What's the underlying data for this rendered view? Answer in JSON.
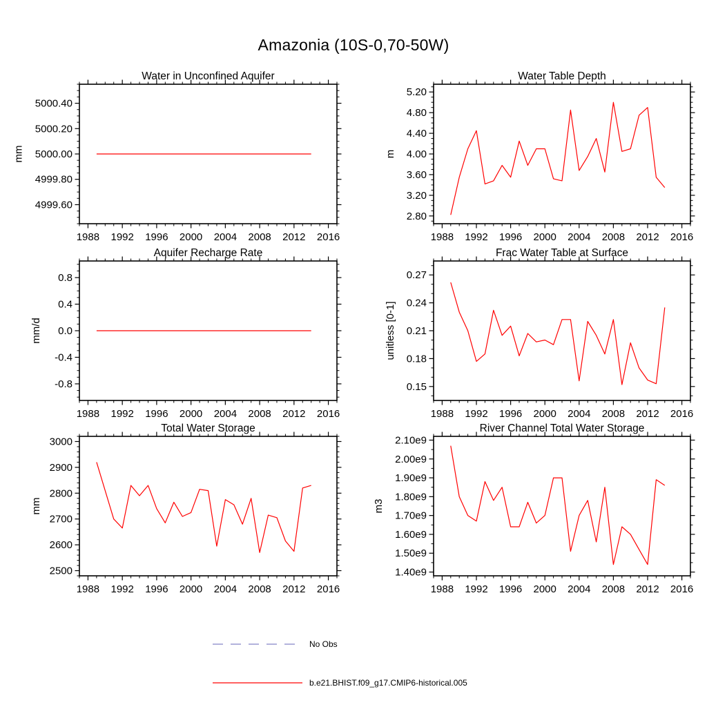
{
  "page_title": "Amazonia (10S-0,70-50W)",
  "colors": {
    "line": "#ff0000",
    "frame": "#000000",
    "no_obs": "#8585c8"
  },
  "legend": {
    "entries": [
      {
        "label": "No Obs",
        "color": "#8585c8",
        "dash": "15 11"
      },
      {
        "label": "b.e21.BHIST.f09_g17.CMIP6-historical.005",
        "color": "#ff0000",
        "dash": ""
      }
    ]
  },
  "chart_data": [
    {
      "id": "water-in-unconfined-aquifer",
      "type": "line",
      "title": "Water in Unconfined Aquifer",
      "ylabel": "mm",
      "x": [
        1989,
        1990,
        1991,
        1992,
        1993,
        1994,
        1995,
        1996,
        1997,
        1998,
        1999,
        2000,
        2001,
        2002,
        2003,
        2004,
        2005,
        2006,
        2007,
        2008,
        2009,
        2010,
        2011,
        2012,
        2013,
        2014
      ],
      "values": [
        5000,
        5000,
        5000,
        5000,
        5000,
        5000,
        5000,
        5000,
        5000,
        5000,
        5000,
        5000,
        5000,
        5000,
        5000,
        5000,
        5000,
        5000,
        5000,
        5000,
        5000,
        5000,
        5000,
        5000,
        5000,
        5000
      ],
      "xlim": [
        1987,
        2017
      ],
      "xticks": [
        1988,
        1992,
        1996,
        2000,
        2004,
        2008,
        2012,
        2016
      ],
      "x_minor": 3,
      "ylim": [
        4999.45,
        5000.55
      ],
      "yticks": [
        4999.6,
        4999.8,
        5000.0,
        5000.2,
        5000.4
      ],
      "ytick_labels": [
        "4999.60",
        "4999.80",
        "5000.00",
        "5000.20",
        "5000.40"
      ],
      "y_minor": 3,
      "line_color": "#ff0000"
    },
    {
      "id": "water-table-depth",
      "type": "line",
      "title": "Water Table Depth",
      "ylabel": "m",
      "x": [
        1989,
        1990,
        1991,
        1992,
        1993,
        1994,
        1995,
        1996,
        1997,
        1998,
        1999,
        2000,
        2001,
        2002,
        2003,
        2004,
        2005,
        2006,
        2007,
        2008,
        2009,
        2010,
        2011,
        2012,
        2013,
        2014
      ],
      "values": [
        2.82,
        3.55,
        4.1,
        4.45,
        3.42,
        3.48,
        3.78,
        3.55,
        4.25,
        3.78,
        4.1,
        4.1,
        3.52,
        3.48,
        4.85,
        3.68,
        3.95,
        4.3,
        3.65,
        5.0,
        4.05,
        4.1,
        4.75,
        4.9,
        3.55,
        3.35
      ],
      "xlim": [
        1987,
        2017
      ],
      "xticks": [
        1988,
        1992,
        1996,
        2000,
        2004,
        2008,
        2012,
        2016
      ],
      "x_minor": 3,
      "ylim": [
        2.65,
        5.35
      ],
      "yticks": [
        2.8,
        3.2,
        3.6,
        4.0,
        4.4,
        4.8,
        5.2
      ],
      "ytick_labels": [
        "2.80",
        "3.20",
        "3.60",
        "4.00",
        "4.40",
        "4.80",
        "5.20"
      ],
      "y_minor": 3,
      "line_color": "#ff0000"
    },
    {
      "id": "aquifer-recharge-rate",
      "type": "line",
      "title": "Aquifer Recharge Rate",
      "ylabel": "mm/d",
      "x": [
        1989,
        1990,
        1991,
        1992,
        1993,
        1994,
        1995,
        1996,
        1997,
        1998,
        1999,
        2000,
        2001,
        2002,
        2003,
        2004,
        2005,
        2006,
        2007,
        2008,
        2009,
        2010,
        2011,
        2012,
        2013,
        2014
      ],
      "values": [
        0,
        0,
        0,
        0,
        0,
        0,
        0,
        0,
        0,
        0,
        0,
        0,
        0,
        0,
        0,
        0,
        0,
        0,
        0,
        0,
        0,
        0,
        0,
        0,
        0,
        0
      ],
      "xlim": [
        1987,
        2017
      ],
      "xticks": [
        1988,
        1992,
        1996,
        2000,
        2004,
        2008,
        2012,
        2016
      ],
      "x_minor": 3,
      "ylim": [
        -1.05,
        1.05
      ],
      "yticks": [
        -0.8,
        -0.4,
        0.0,
        0.4,
        0.8
      ],
      "ytick_labels": [
        "-0.8",
        "-0.4",
        "0.0",
        "0.4",
        "0.8"
      ],
      "y_minor": 3,
      "line_color": "#ff0000"
    },
    {
      "id": "frac-water-table-at-surface",
      "type": "line",
      "title": "Frac Water Table at Surface",
      "ylabel": "unitless [0-1]",
      "x": [
        1989,
        1990,
        1991,
        1992,
        1993,
        1994,
        1995,
        1996,
        1997,
        1998,
        1999,
        2000,
        2001,
        2002,
        2003,
        2004,
        2005,
        2006,
        2007,
        2008,
        2009,
        2010,
        2011,
        2012,
        2013,
        2014
      ],
      "values": [
        0.262,
        0.23,
        0.21,
        0.177,
        0.185,
        0.232,
        0.205,
        0.215,
        0.183,
        0.207,
        0.198,
        0.2,
        0.195,
        0.222,
        0.222,
        0.156,
        0.22,
        0.205,
        0.185,
        0.222,
        0.152,
        0.197,
        0.17,
        0.157,
        0.153,
        0.235
      ],
      "xlim": [
        1987,
        2017
      ],
      "xticks": [
        1988,
        1992,
        1996,
        2000,
        2004,
        2008,
        2012,
        2016
      ],
      "x_minor": 3,
      "ylim": [
        0.135,
        0.285
      ],
      "yticks": [
        0.15,
        0.18,
        0.21,
        0.24,
        0.27
      ],
      "ytick_labels": [
        "0.15",
        "0.18",
        "0.21",
        "0.24",
        "0.27"
      ],
      "y_minor": 2,
      "line_color": "#ff0000"
    },
    {
      "id": "total-water-storage",
      "type": "line",
      "title": "Total Water Storage",
      "ylabel": "mm",
      "x": [
        1989,
        1990,
        1991,
        1992,
        1993,
        1994,
        1995,
        1996,
        1997,
        1998,
        1999,
        2000,
        2001,
        2002,
        2003,
        2004,
        2005,
        2006,
        2007,
        2008,
        2009,
        2010,
        2011,
        2012,
        2013,
        2014
      ],
      "values": [
        2920,
        2810,
        2700,
        2665,
        2830,
        2790,
        2830,
        2740,
        2685,
        2765,
        2710,
        2725,
        2815,
        2810,
        2595,
        2775,
        2755,
        2680,
        2780,
        2570,
        2715,
        2705,
        2615,
        2575,
        2820,
        2830
      ],
      "xlim": [
        1987,
        2017
      ],
      "xticks": [
        1988,
        1992,
        1996,
        2000,
        2004,
        2008,
        2012,
        2016
      ],
      "x_minor": 3,
      "ylim": [
        2480,
        3020
      ],
      "yticks": [
        2500,
        2600,
        2700,
        2800,
        2900,
        3000
      ],
      "ytick_labels": [
        "2500",
        "2600",
        "2700",
        "2800",
        "2900",
        "3000"
      ],
      "y_minor": 4,
      "line_color": "#ff0000"
    },
    {
      "id": "river-channel-total-water-storage",
      "type": "line",
      "title": "River Channel Total Water Storage",
      "ylabel": "m3",
      "x": [
        1989,
        1990,
        1991,
        1992,
        1993,
        1994,
        1995,
        1996,
        1997,
        1998,
        1999,
        2000,
        2001,
        2002,
        2003,
        2004,
        2005,
        2006,
        2007,
        2008,
        2009,
        2010,
        2011,
        2012,
        2013,
        2014
      ],
      "values": [
        2070000000.0,
        1800000000.0,
        1700000000.0,
        1670000000.0,
        1880000000.0,
        1780000000.0,
        1850000000.0,
        1640000000.0,
        1640000000.0,
        1770000000.0,
        1660000000.0,
        1700000000.0,
        1900000000.0,
        1900000000.0,
        1510000000.0,
        1700000000.0,
        1780000000.0,
        1560000000.0,
        1850000000.0,
        1440000000.0,
        1640000000.0,
        1600000000.0,
        1520000000.0,
        1440000000.0,
        1890000000.0,
        1860000000.0
      ],
      "xlim": [
        1987,
        2017
      ],
      "xticks": [
        1988,
        1992,
        1996,
        2000,
        2004,
        2008,
        2012,
        2016
      ],
      "x_minor": 3,
      "ylim": [
        1380000000.0,
        2120000000.0
      ],
      "yticks": [
        1400000000.0,
        1500000000.0,
        1600000000.0,
        1700000000.0,
        1800000000.0,
        1900000000.0,
        2000000000.0,
        2100000000.0
      ],
      "ytick_labels": [
        "1.40e9",
        "1.50e9",
        "1.60e9",
        "1.70e9",
        "1.80e9",
        "1.90e9",
        "2.00e9",
        "2.10e9"
      ],
      "y_minor": 1,
      "line_color": "#ff0000"
    }
  ]
}
